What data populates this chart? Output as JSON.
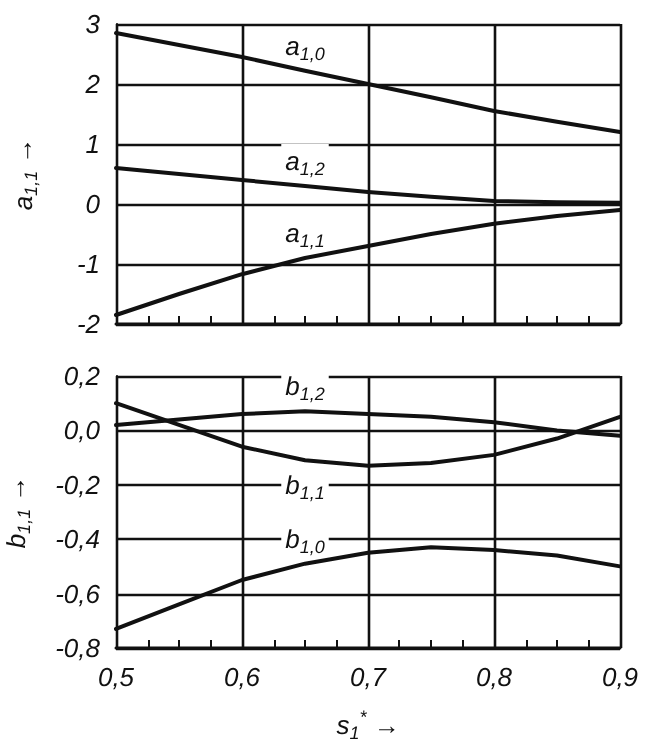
{
  "chart_data": [
    {
      "type": "line",
      "ylabel": "a$_{1,1}$ →",
      "x": [
        0.5,
        0.55,
        0.6,
        0.65,
        0.7,
        0.75,
        0.8,
        0.85,
        0.9
      ],
      "xlim": [
        0.5,
        0.9
      ],
      "xticks": [
        0.5,
        0.6,
        0.7,
        0.8,
        0.9
      ],
      "ylim": [
        -2,
        3
      ],
      "yticks": [
        -2,
        -1,
        0,
        1,
        2,
        3
      ],
      "grid": true,
      "tick_labels": "y",
      "series": [
        {
          "name": "a$_{1,0}$",
          "color": "#111111",
          "values": [
            2.85,
            2.65,
            2.45,
            2.22,
            2.0,
            1.78,
            1.55,
            1.37,
            1.2
          ]
        },
        {
          "name": "a$_{1,2}$",
          "color": "#111111",
          "values": [
            0.6,
            0.5,
            0.4,
            0.3,
            0.2,
            0.12,
            0.05,
            0.03,
            0.02
          ]
        },
        {
          "name": "a$_{1,1}$",
          "color": "#111111",
          "values": [
            -1.85,
            -1.5,
            -1.17,
            -0.9,
            -0.7,
            -0.5,
            -0.33,
            -0.2,
            -0.1
          ]
        }
      ]
    },
    {
      "type": "line",
      "xlabel": "s$_{1}$$^{*}$ →",
      "ylabel": "b$_{1,1}$ →",
      "x": [
        0.5,
        0.55,
        0.6,
        0.65,
        0.7,
        0.75,
        0.8,
        0.85,
        0.9
      ],
      "xlim": [
        0.5,
        0.9
      ],
      "xticks": [
        {
          "value": 0.5,
          "label": "0,5"
        },
        {
          "value": 0.6,
          "label": "0,6"
        },
        {
          "value": 0.7,
          "label": "0,7"
        },
        {
          "value": 0.8,
          "label": "0,8"
        },
        {
          "value": 0.9,
          "label": "0,9"
        }
      ],
      "ylim": [
        -0.8,
        0.2
      ],
      "yticks": [
        {
          "value": -0.8,
          "label": "-0,8"
        },
        {
          "value": -0.6,
          "label": "-0,6"
        },
        {
          "value": -0.4,
          "label": "-0,4"
        },
        {
          "value": -0.2,
          "label": "-0,2"
        },
        {
          "value": 0,
          "label": "0,0"
        },
        {
          "value": 0.2,
          "label": "0,2"
        }
      ],
      "grid": true,
      "series": [
        {
          "name": "b$_{1,2}$",
          "color": "#111111",
          "values": [
            0.02,
            0.04,
            0.06,
            0.07,
            0.06,
            0.05,
            0.03,
            0.0,
            -0.02
          ]
        },
        {
          "name": "b$_{1,1}$",
          "color": "#111111",
          "values": [
            0.1,
            0.02,
            -0.06,
            -0.11,
            -0.13,
            -0.12,
            -0.09,
            -0.03,
            0.05
          ]
        },
        {
          "name": "b$_{1,0}$",
          "color": "#111111",
          "values": [
            -0.73,
            -0.64,
            -0.55,
            -0.49,
            -0.45,
            -0.43,
            -0.44,
            -0.46,
            -0.5
          ]
        }
      ]
    }
  ]
}
